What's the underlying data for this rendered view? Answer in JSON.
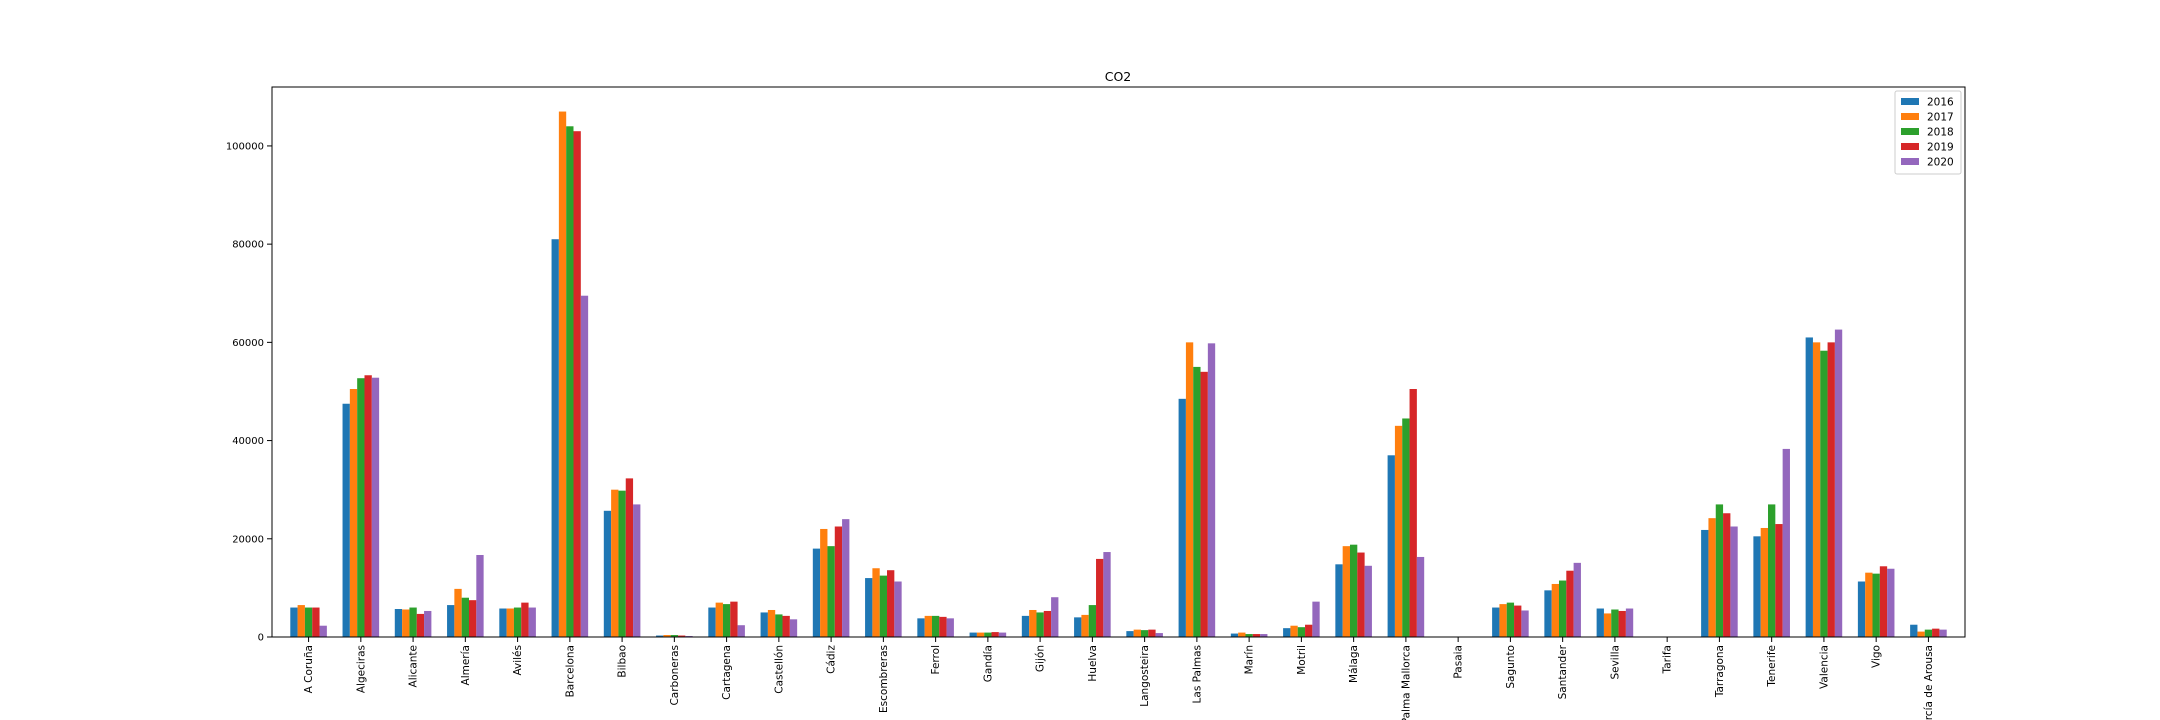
{
  "chart_data": {
    "type": "bar",
    "title": "CO2",
    "xlabel": "",
    "ylabel": "",
    "ylim": [
      0,
      112000
    ],
    "yticks": [
      0,
      20000,
      40000,
      60000,
      80000,
      100000
    ],
    "legend_position": "top-right",
    "grid": false,
    "categories": [
      "A Coruña",
      "Algeciras",
      "Alicante",
      "Almería",
      "Avilés",
      "Barcelona",
      "Bilbao",
      "Carboneras",
      "Cartagena",
      "Castellón",
      "Cádiz",
      "Escombreras",
      "Ferrol",
      "Gandía",
      "Gijón",
      "Huelva",
      "Langosteira",
      "Las Palmas",
      "Marín",
      "Motril",
      "Málaga",
      "Palma Mallorca",
      "Pasaia",
      "Sagunto",
      "Santander",
      "Sevilla",
      "Tarifa",
      "Tarragona",
      "Tenerife",
      "Valencia",
      "Vigo",
      "Vilagarcía de Arousa"
    ],
    "series": [
      {
        "name": "2016",
        "color": "#1f77b4",
        "values": [
          6000,
          47500,
          5700,
          6500,
          5800,
          81000,
          25700,
          300,
          6000,
          5000,
          18000,
          12000,
          3800,
          900,
          4300,
          4000,
          1200,
          48500,
          700,
          1800,
          14800,
          37000,
          0,
          6000,
          9500,
          5800,
          0,
          21800,
          20500,
          61000,
          11300,
          2500
        ]
      },
      {
        "name": "2017",
        "color": "#ff7f0e",
        "values": [
          6500,
          50500,
          5600,
          9800,
          5800,
          107000,
          30000,
          400,
          7000,
          5500,
          22000,
          14000,
          4300,
          900,
          5500,
          4500,
          1500,
          60000,
          900,
          2300,
          18500,
          43000,
          0,
          6700,
          10800,
          4800,
          0,
          24200,
          22200,
          60000,
          13100,
          1100
        ]
      },
      {
        "name": "2018",
        "color": "#2ca02c",
        "values": [
          6000,
          52700,
          6000,
          8000,
          6000,
          104000,
          29800,
          400,
          6700,
          4600,
          18500,
          12500,
          4300,
          900,
          5000,
          6500,
          1400,
          55000,
          600,
          2000,
          18800,
          44500,
          0,
          7000,
          11500,
          5600,
          0,
          27000,
          27000,
          58300,
          12900,
          1500
        ]
      },
      {
        "name": "2019",
        "color": "#d62728",
        "values": [
          6000,
          53300,
          4700,
          7500,
          7000,
          103000,
          32300,
          300,
          7200,
          4300,
          22500,
          13600,
          4100,
          1000,
          5300,
          15900,
          1500,
          54000,
          600,
          2500,
          17200,
          50500,
          0,
          6400,
          13500,
          5300,
          0,
          25200,
          23000,
          60000,
          14400,
          1700
        ]
      },
      {
        "name": "2020",
        "color": "#9467bd",
        "values": [
          2300,
          52800,
          5300,
          16700,
          6000,
          69500,
          27000,
          200,
          2400,
          3600,
          24000,
          11300,
          3800,
          900,
          8100,
          17300,
          800,
          59800,
          600,
          7200,
          14500,
          16300,
          0,
          5400,
          15100,
          5800,
          0,
          22500,
          38300,
          62600,
          13900,
          1500
        ]
      }
    ]
  }
}
